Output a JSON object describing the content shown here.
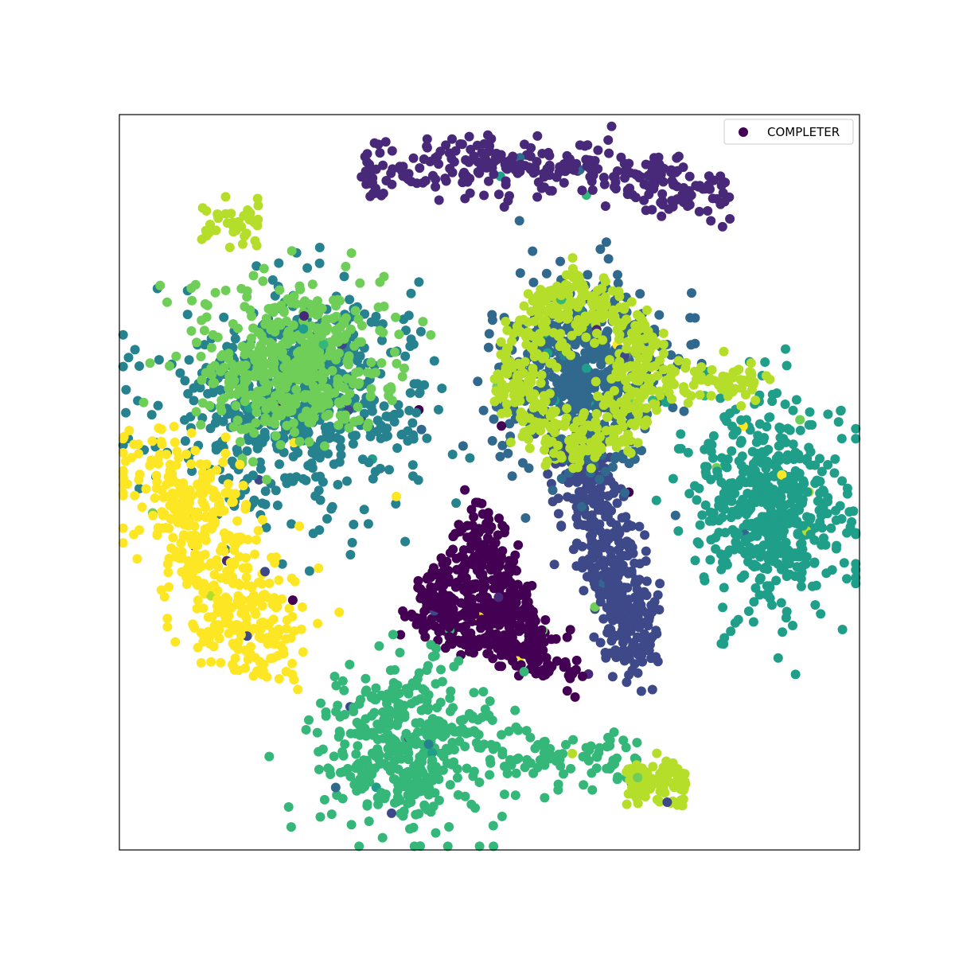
{
  "chart_data": {
    "type": "scatter",
    "title": "",
    "xlabel": "",
    "ylabel": "",
    "xlim": [
      -100,
      100
    ],
    "ylim": [
      -100,
      100
    ],
    "ticks": "none",
    "grid": false,
    "legend": {
      "position": "top-right",
      "entries": [
        {
          "label": "COMPLETER",
          "color": "#440154"
        }
      ]
    },
    "point_style": {
      "marker": "circle",
      "colormap": "viridis"
    },
    "clusters": [
      {
        "class": 0,
        "color": "#440154",
        "shape": "triangle",
        "center": [
          0,
          -28
        ],
        "spread": [
          22,
          26
        ],
        "n": 1500
      },
      {
        "class": 1,
        "color": "#482878",
        "shape": "arc",
        "center": [
          15,
          80
        ],
        "spread": [
          50,
          12
        ],
        "n": 900
      },
      {
        "class": 2,
        "color": "#3e4989",
        "shape": "band",
        "center": [
          32,
          -18
        ],
        "spread": [
          10,
          30
        ],
        "n": 1200
      },
      {
        "class": 3,
        "color": "#31688e",
        "shape": "blob",
        "center": [
          24,
          30
        ],
        "spread": [
          20,
          23
        ],
        "n": 1600
      },
      {
        "class": 4,
        "color": "#26828e",
        "shape": "blob",
        "center": [
          -52,
          23
        ],
        "spread": [
          30,
          25
        ],
        "n": 1800
      },
      {
        "class": 5,
        "color": "#1f9e89",
        "shape": "blob",
        "center": [
          76,
          -6
        ],
        "spread": [
          18,
          26
        ],
        "n": 1500
      },
      {
        "class": 6,
        "color": "#35b779",
        "shape": "blob",
        "center": [
          -22,
          -72
        ],
        "spread": [
          22,
          20
        ],
        "n": 1200
      },
      {
        "class": 6,
        "color": "#35b779",
        "shape": "tail",
        "center": [
          20,
          -75
        ],
        "spread": [
          20,
          4
        ],
        "n": 250
      },
      {
        "class": 7,
        "color": "#6ece58",
        "shape": "blob",
        "center": [
          -55,
          32
        ],
        "spread": [
          24,
          20
        ],
        "n": 1400
      },
      {
        "class": 8,
        "color": "#b5de2b",
        "shape": "ring",
        "center": [
          24,
          30
        ],
        "spread": [
          20,
          23
        ],
        "n": 1400
      },
      {
        "class": 8,
        "color": "#b5de2b",
        "shape": "tail",
        "center": [
          45,
          -82
        ],
        "spread": [
          8,
          3
        ],
        "n": 300
      },
      {
        "class": 8,
        "color": "#b5de2b",
        "shape": "tail",
        "center": [
          -70,
          70
        ],
        "spread": [
          8,
          3
        ],
        "n": 120
      },
      {
        "class": 8,
        "color": "#b5de2b",
        "shape": "tail",
        "center": [
          62,
          28
        ],
        "spread": [
          14,
          3
        ],
        "n": 200
      },
      {
        "class": 9,
        "color": "#fde725",
        "shape": "band",
        "center": [
          -75,
          -20
        ],
        "spread": [
          18,
          30
        ],
        "n": 1300
      }
    ]
  }
}
